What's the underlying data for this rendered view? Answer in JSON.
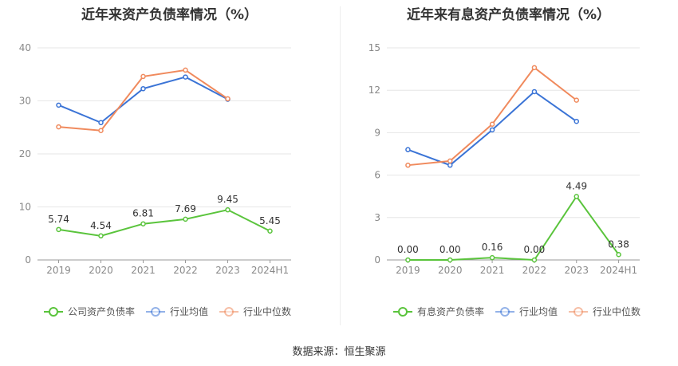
{
  "footer": {
    "source": "数据来源：恒生聚源"
  },
  "chart_data": [
    {
      "type": "line",
      "title": "近年来资产负债率情况（%）",
      "categories": [
        "2019",
        "2020",
        "2021",
        "2022",
        "2023",
        "2024H1"
      ],
      "ylim": [
        0,
        40
      ],
      "yticks": [
        0,
        10,
        20,
        30,
        40
      ],
      "grid": true,
      "legend_position": "bottom",
      "series": [
        {
          "name": "公司资产负债率",
          "color": "#5ac43c",
          "values": [
            5.74,
            4.54,
            6.81,
            7.69,
            9.45,
            5.45
          ],
          "labels": [
            "5.74",
            "4.54",
            "6.81",
            "7.69",
            "9.45",
            "5.45"
          ]
        },
        {
          "name": "行业均值",
          "color": "#3b74d6",
          "values": [
            29.2,
            25.9,
            32.3,
            34.5,
            30.3,
            null
          ]
        },
        {
          "name": "行业中位数",
          "color": "#f08a5d",
          "values": [
            25.1,
            24.4,
            34.6,
            35.8,
            30.4,
            null
          ]
        }
      ]
    },
    {
      "type": "line",
      "title": "近年来有息资产负债率情况（%）",
      "categories": [
        "2019",
        "2020",
        "2021",
        "2022",
        "2023",
        "2024H1"
      ],
      "ylim": [
        0,
        15
      ],
      "yticks": [
        0,
        3,
        6,
        9,
        12,
        15
      ],
      "grid": true,
      "legend_position": "bottom",
      "series": [
        {
          "name": "有息资产负债率",
          "color": "#5ac43c",
          "values": [
            0.0,
            0.0,
            0.16,
            0.0,
            4.49,
            0.38
          ],
          "labels": [
            "0.00",
            "0.00",
            "0.16",
            "0.00",
            "4.49",
            "0.38"
          ]
        },
        {
          "name": "行业均值",
          "color": "#3b74d6",
          "values": [
            7.8,
            6.7,
            9.2,
            11.9,
            9.8,
            null
          ]
        },
        {
          "name": "行业中位数",
          "color": "#f08a5d",
          "values": [
            6.7,
            7.0,
            9.6,
            13.6,
            11.3,
            null
          ]
        }
      ]
    }
  ]
}
